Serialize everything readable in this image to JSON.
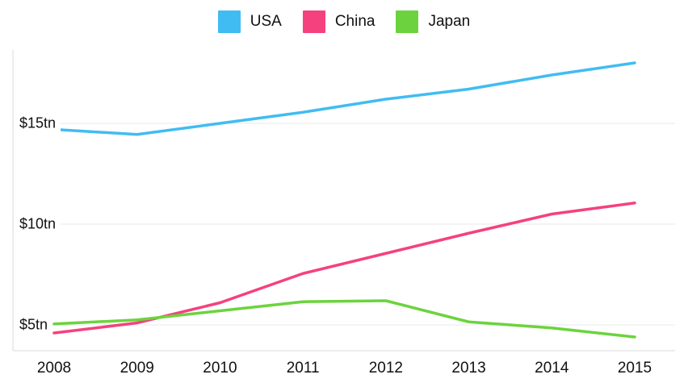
{
  "legend": {
    "items": [
      {
        "label": "USA"
      },
      {
        "label": "China"
      },
      {
        "label": "Japan"
      }
    ]
  },
  "chart_data": {
    "type": "line",
    "title": "",
    "xlabel": "",
    "ylabel": "",
    "x": [
      2008,
      2009,
      2010,
      2011,
      2012,
      2013,
      2014,
      2015
    ],
    "series": [
      {
        "name": "USA",
        "color": "#41BCF2",
        "values": [
          14.7,
          14.45,
          15.0,
          15.55,
          16.2,
          16.7,
          17.4,
          18.0
        ]
      },
      {
        "name": "China",
        "color": "#F5417D",
        "values": [
          4.6,
          5.1,
          6.1,
          7.55,
          8.55,
          9.55,
          10.5,
          11.05
        ]
      },
      {
        "name": "Japan",
        "color": "#6CD33E",
        "values": [
          5.05,
          5.25,
          5.7,
          6.15,
          6.2,
          5.15,
          4.85,
          4.4
        ]
      }
    ],
    "y_ticks": [
      {
        "value": 5,
        "label": "$5tn"
      },
      {
        "value": 10,
        "label": "$10tn"
      },
      {
        "value": 15,
        "label": "$15tn"
      }
    ],
    "ylim": [
      3.7,
      18.7
    ],
    "grid": true,
    "legend_position": "top"
  },
  "colors": {
    "grid": "#F0F0F0",
    "axis": "#E7E7E7",
    "text": "#111111",
    "background": "#FFFFFF"
  }
}
